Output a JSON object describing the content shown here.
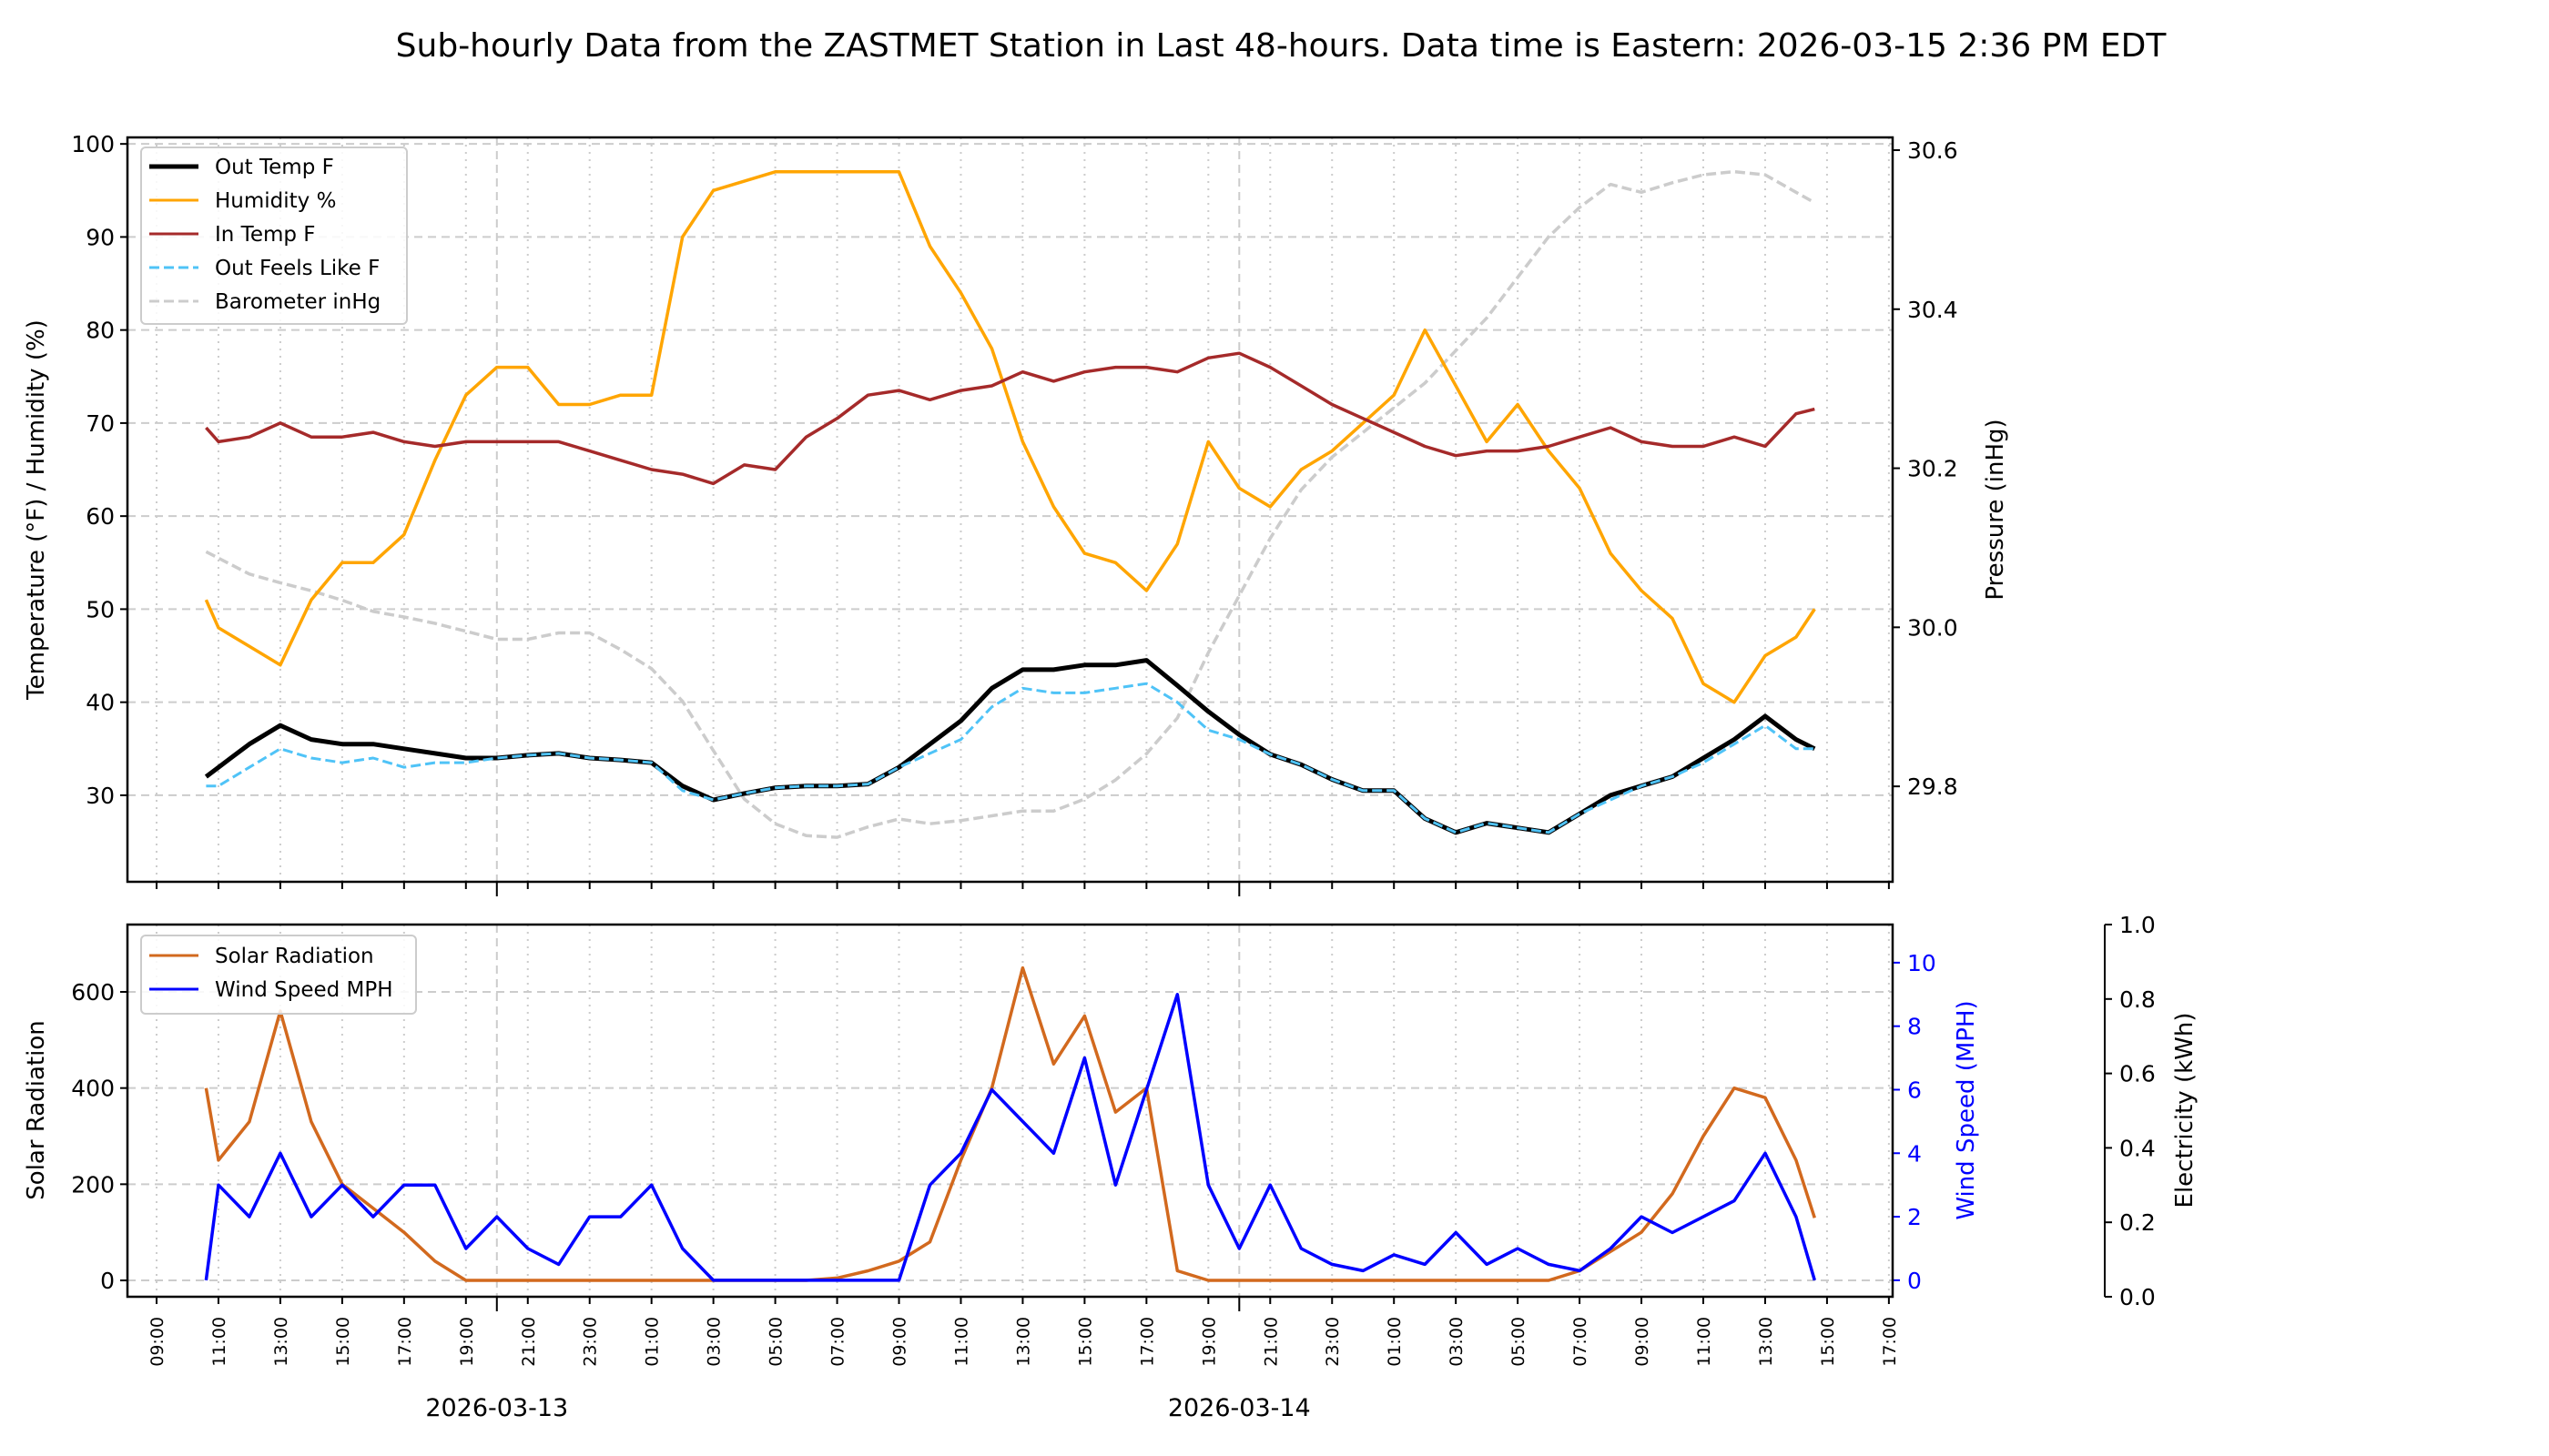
{
  "title": "Sub-hourly Data from the ZASTMET Station in Last 48-hours. Data time is Eastern: 2026-03-15 2:36 PM EDT",
  "chart_data": [
    {
      "type": "line",
      "panel": "top",
      "ylabel": "Temperature (°F) / Humidity (%)",
      "ylabel_right": "Pressure (inHg)",
      "ylim": [
        20.7,
        100.7
      ],
      "ylim_right": [
        29.68,
        30.616
      ],
      "yticks": [
        30,
        40,
        50,
        60,
        70,
        80,
        90,
        100
      ],
      "yticks_right": [
        "29.8",
        "30.0",
        "30.2",
        "30.4",
        "30.6"
      ],
      "grid": true,
      "legend_position": "top-left",
      "series": [
        {
          "name": "Out Temp F",
          "axis": "left",
          "color": "#000000",
          "style": "solid",
          "values": [
            32,
            33,
            35.5,
            37.5,
            36,
            35.5,
            35.5,
            35,
            34.5,
            34,
            34,
            34.3,
            34.5,
            34,
            33.8,
            33.5,
            31,
            29.5,
            30.2,
            30.8,
            31,
            31,
            31.2,
            33,
            35.5,
            38,
            41.5,
            43.5,
            43.5,
            44,
            44,
            44.5,
            41.8,
            39,
            36.5,
            34.4,
            33.3,
            31.7,
            30.5,
            30.5,
            27.5,
            26,
            27,
            26.5,
            26,
            28,
            30,
            31,
            32,
            34,
            36,
            38.5,
            36,
            35
          ]
        },
        {
          "name": "Humidity %",
          "axis": "left",
          "color": "#FFA500",
          "style": "solid",
          "values": [
            51,
            48,
            46,
            44,
            51,
            55,
            55,
            58,
            66,
            73,
            76,
            76,
            72,
            72,
            73,
            73,
            90,
            95,
            96,
            97,
            97,
            97,
            97,
            97,
            89,
            84,
            78,
            68,
            61,
            56,
            55,
            52,
            57,
            68,
            63,
            61,
            65,
            67,
            70,
            73,
            80,
            74,
            68,
            72,
            67,
            63,
            56,
            52,
            49,
            42,
            40,
            45,
            47,
            50
          ]
        },
        {
          "name": "In Temp F",
          "axis": "left",
          "color": "#A52A2A",
          "style": "solid",
          "values": [
            69.5,
            68,
            68.5,
            70,
            68.5,
            68.5,
            69,
            68,
            67.5,
            68,
            68,
            68,
            68,
            67,
            66,
            65,
            64.5,
            63.5,
            65.5,
            65,
            68.5,
            70.5,
            73,
            73.5,
            72.5,
            73.5,
            74,
            75.5,
            74.5,
            75.5,
            76,
            76,
            75.5,
            77,
            77.5,
            76,
            74,
            72,
            70.5,
            69,
            67.5,
            66.5,
            67,
            67,
            67.5,
            68.5,
            69.5,
            68,
            67.5,
            67.5,
            68.5,
            67.5,
            71,
            71.5
          ]
        },
        {
          "name": "Out Feels Like F",
          "axis": "left",
          "color": "#4FC3F7",
          "style": "dashed",
          "values": [
            31,
            31,
            33,
            35,
            34,
            33.5,
            34,
            33,
            33.5,
            33.5,
            34,
            34.3,
            34.5,
            34,
            33.8,
            33.5,
            30.5,
            29.5,
            30.2,
            30.8,
            31,
            31,
            31.2,
            33,
            34.5,
            36,
            39.5,
            41.5,
            41,
            41,
            41.5,
            42,
            40,
            37,
            36,
            34.4,
            33.3,
            31.7,
            30.5,
            30.5,
            27.5,
            26,
            27,
            26.5,
            26,
            28,
            29.5,
            31,
            32,
            33.5,
            35.5,
            37.5,
            35,
            35
          ]
        },
        {
          "name": "Barometer inHg",
          "axis": "right",
          "color": "#CCCCCC",
          "style": "dashed",
          "values": [
            30.095,
            30.087,
            30.067,
            30.056,
            30.046,
            30.034,
            30.02,
            30.013,
            30.005,
            29.995,
            29.985,
            29.985,
            29.993,
            29.993,
            29.972,
            29.948,
            29.907,
            29.845,
            29.784,
            29.753,
            29.738,
            29.736,
            29.749,
            29.759,
            29.753,
            29.757,
            29.763,
            29.769,
            29.769,
            29.784,
            29.808,
            29.841,
            29.886,
            29.968,
            30.04,
            30.112,
            30.173,
            30.214,
            30.245,
            30.276,
            30.307,
            30.348,
            30.389,
            30.44,
            30.491,
            30.528,
            30.557,
            30.547,
            30.559,
            30.569,
            30.573,
            30.569,
            30.547,
            30.534
          ]
        }
      ]
    },
    {
      "type": "line",
      "panel": "bottom",
      "ylabel": "Solar Radiation",
      "ylabel_right": "Wind Speed (MPH)",
      "ylabel_right2": "Electricity (kWh)",
      "ylim": [
        -34,
        740
      ],
      "ylim_right": [
        -0.52,
        11.2
      ],
      "ylim_right2": [
        0,
        1
      ],
      "yticks": [
        0,
        200,
        400,
        600
      ],
      "yticks_right": [
        0,
        2,
        4,
        6,
        8,
        10
      ],
      "yticks_right2": [
        "0.0",
        "0.2",
        "0.4",
        "0.6",
        "0.8",
        "1.0"
      ],
      "grid": true,
      "legend_position": "top-left",
      "series": [
        {
          "name": "Solar Radiation",
          "axis": "left",
          "color": "#D2691E",
          "style": "solid",
          "values": [
            400,
            250,
            330,
            560,
            330,
            200,
            150,
            100,
            40,
            0,
            0,
            0,
            0,
            0,
            0,
            0,
            0,
            0,
            0,
            0,
            0,
            5,
            20,
            40,
            80,
            250,
            400,
            650,
            450,
            550,
            350,
            400,
            20,
            0,
            0,
            0,
            0,
            0,
            0,
            0,
            0,
            0,
            0,
            0,
            0,
            20,
            60,
            100,
            180,
            300,
            400,
            380,
            250,
            130
          ]
        },
        {
          "name": "Wind Speed MPH",
          "axis": "right",
          "color": "#0000FF",
          "style": "solid",
          "values": [
            0,
            3,
            2,
            4,
            2,
            3,
            2,
            3,
            3,
            1,
            2,
            1,
            0.5,
            2,
            2,
            3,
            1,
            0,
            0,
            0,
            0,
            0,
            0,
            0,
            3,
            4,
            6,
            5,
            4,
            7,
            3,
            6,
            9,
            3,
            1,
            3,
            1,
            0.5,
            0.3,
            0.8,
            0.5,
            1.5,
            0.5,
            1,
            0.5,
            0.3,
            1,
            2,
            1.5,
            2,
            2.5,
            4,
            2,
            0
          ]
        }
      ]
    }
  ],
  "x": [
    "2026-03-12 10:36",
    "2026-03-12 11:00",
    "2026-03-12 12:00",
    "2026-03-12 13:00",
    "2026-03-12 14:00",
    "2026-03-12 15:00",
    "2026-03-12 16:00",
    "2026-03-12 17:00",
    "2026-03-12 18:00",
    "2026-03-12 19:00",
    "2026-03-12 20:00",
    "2026-03-12 21:00",
    "2026-03-12 22:00",
    "2026-03-12 23:00",
    "2026-03-13 00:00",
    "2026-03-13 01:00",
    "2026-03-13 02:00",
    "2026-03-13 03:00",
    "2026-03-13 04:00",
    "2026-03-13 05:00",
    "2026-03-13 06:00",
    "2026-03-13 07:00",
    "2026-03-13 08:00",
    "2026-03-13 09:00",
    "2026-03-13 10:00",
    "2026-03-13 11:00",
    "2026-03-13 12:00",
    "2026-03-13 13:00",
    "2026-03-13 14:00",
    "2026-03-13 15:00",
    "2026-03-13 16:00",
    "2026-03-13 17:00",
    "2026-03-13 18:00",
    "2026-03-13 19:00",
    "2026-03-13 20:00",
    "2026-03-13 21:00",
    "2026-03-13 22:00",
    "2026-03-13 23:00",
    "2026-03-14 00:00",
    "2026-03-14 01:00",
    "2026-03-14 02:00",
    "2026-03-14 03:00",
    "2026-03-14 04:00",
    "2026-03-14 05:00",
    "2026-03-14 06:00",
    "2026-03-14 07:00",
    "2026-03-14 08:00",
    "2026-03-14 09:00",
    "2026-03-14 10:00",
    "2026-03-14 11:00",
    "2026-03-14 12:00",
    "2026-03-14 13:00",
    "2026-03-14 14:00",
    "2026-03-14 14:36"
  ],
  "xlim": [
    "2026-03-12 08:00",
    "2026-03-14 17:05"
  ],
  "xticks": [
    "09:00",
    "11:00",
    "13:00",
    "15:00",
    "17:00",
    "19:00",
    "21:00",
    "23:00",
    "01:00",
    "03:00",
    "05:00",
    "07:00",
    "09:00",
    "11:00",
    "13:00",
    "15:00",
    "17:00",
    "19:00",
    "21:00",
    "23:00",
    "01:00",
    "03:00",
    "05:00",
    "07:00",
    "09:00",
    "11:00",
    "13:00",
    "15:00",
    "17:00"
  ],
  "xticks_first": "2026-03-12 09:00",
  "date_labels": [
    {
      "label": "2026-03-13",
      "at": "2026-03-12 20:00"
    },
    {
      "label": "2026-03-14",
      "at": "2026-03-13 20:00"
    }
  ],
  "colors": {
    "wind_axis": "#0000FF",
    "grid": "#CCCCCC"
  }
}
